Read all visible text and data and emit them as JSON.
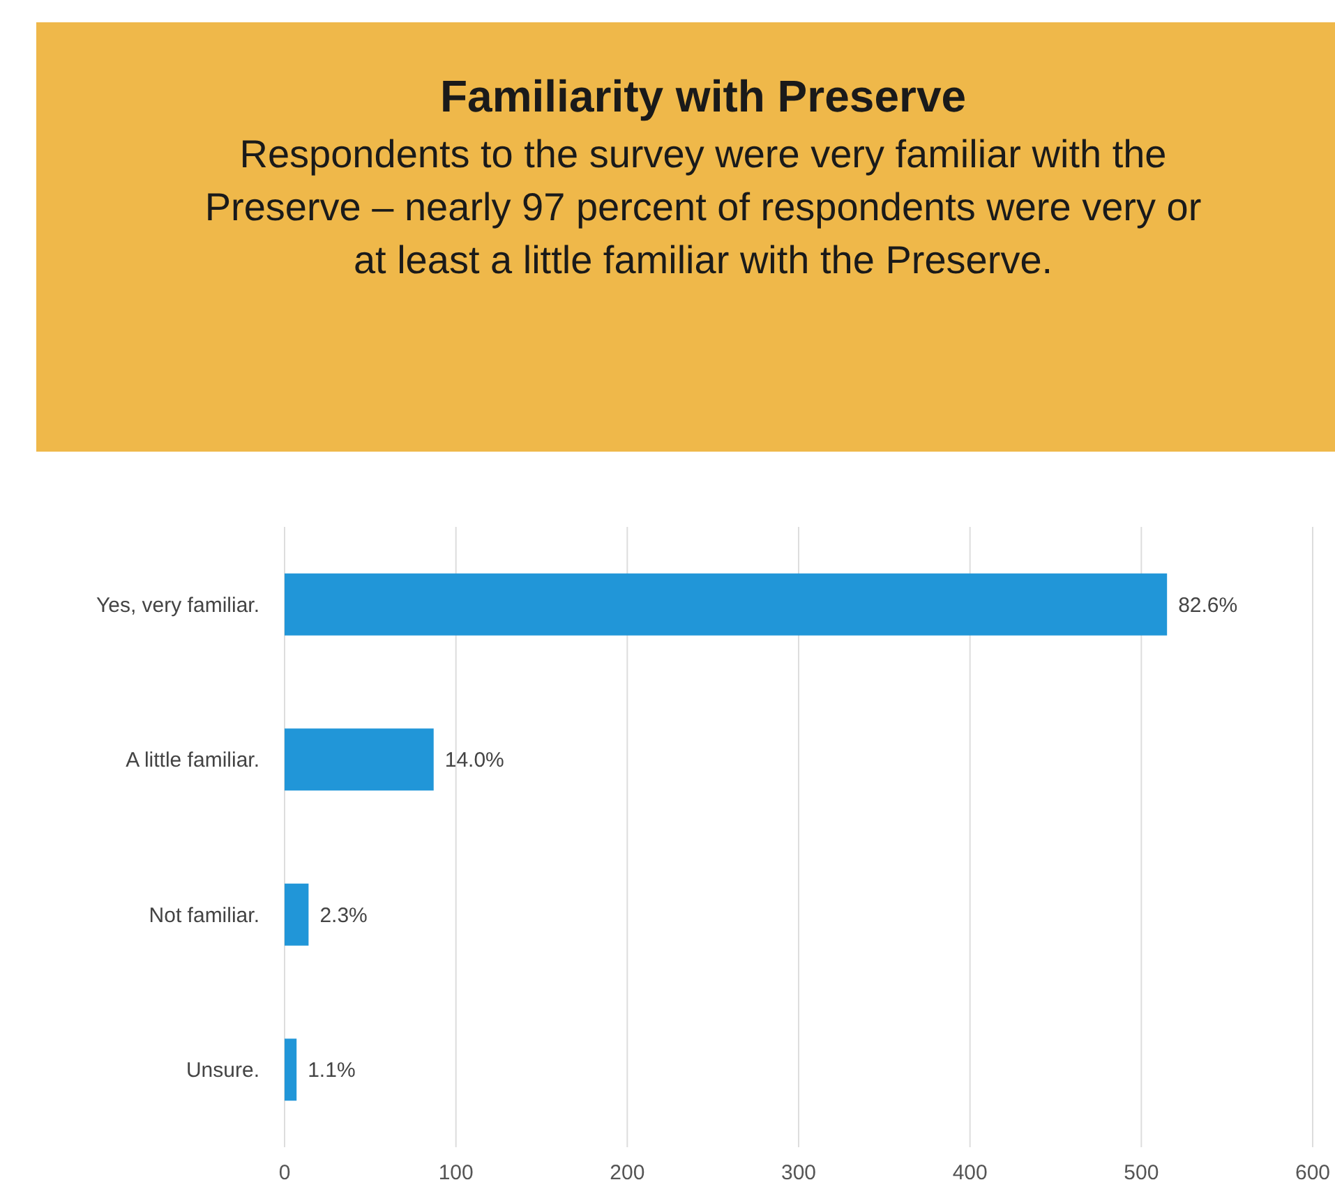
{
  "chart_data": {
    "type": "bar",
    "orientation": "horizontal",
    "title": "Familiarity with Preserve",
    "subtitle": "Respondents to the survey were very familiar with the Preserve – nearly 97 percent of respondents were very or at least a little familiar with the Preserve.",
    "categories": [
      "Yes, very familiar.",
      "A little familiar.",
      "Not familiar.",
      "Unsure."
    ],
    "values": [
      515,
      87,
      14,
      7
    ],
    "color": "#2196d8",
    "annotations": [
      {
        "text": "82.6%",
        "x": 515,
        "y": "Yes, very familiar."
      },
      {
        "text": "14.0%",
        "x": 87,
        "y": "A little familiar."
      },
      {
        "text": "2.3%",
        "x": 14,
        "y": "Not familiar."
      },
      {
        "text": "1.1%",
        "x": 7,
        "y": "Unsure."
      }
    ],
    "xlim": [
      0,
      600
    ],
    "xticks": [
      0,
      100,
      200,
      300,
      400,
      500,
      600
    ],
    "grid": "x"
  }
}
